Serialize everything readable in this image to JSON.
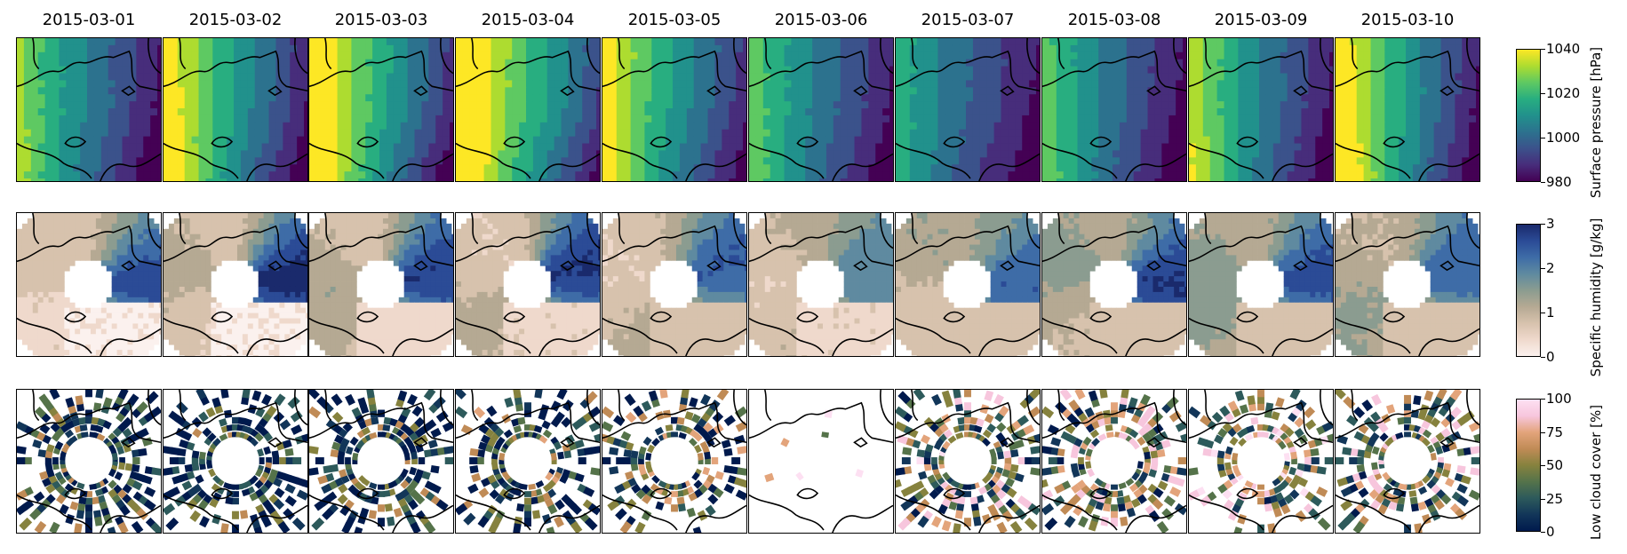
{
  "chart_data": {
    "type": "heatmap",
    "columns": [
      "2015-03-01",
      "2015-03-02",
      "2015-03-03",
      "2015-03-04",
      "2015-03-05",
      "2015-03-06",
      "2015-03-07",
      "2015-03-08",
      "2015-03-09",
      "2015-03-10"
    ],
    "rows": [
      {
        "variable": "Surface pressure",
        "colorbar_label": "Surface pressure [hPa]",
        "range": [
          980,
          1040
        ],
        "ticks": [
          "980",
          "1000",
          "1020",
          "1040"
        ],
        "colormap": [
          "#440154",
          "#472d7b",
          "#3b528b",
          "#2c728e",
          "#21918c",
          "#28ae80",
          "#5ec962",
          "#addc30",
          "#fde725"
        ],
        "field_mask": "full",
        "levels_by_day": [
          [
            0.6,
            0.42,
            0.3,
            0.05
          ],
          [
            0.75,
            0.5,
            0.35,
            0.08
          ],
          [
            0.8,
            0.6,
            0.4,
            0.1
          ],
          [
            0.82,
            0.65,
            0.45,
            0.2
          ],
          [
            0.7,
            0.55,
            0.3,
            0.1
          ],
          [
            0.55,
            0.4,
            0.25,
            0.06
          ],
          [
            0.45,
            0.35,
            0.2,
            0.04
          ],
          [
            0.55,
            0.35,
            0.2,
            0.02
          ],
          [
            0.65,
            0.4,
            0.15,
            0.02
          ],
          [
            0.8,
            0.45,
            0.2,
            0.02
          ]
        ]
      },
      {
        "variable": "Specific humidity",
        "colorbar_label": "Specific humidity [g/kg]",
        "range": [
          0,
          3
        ],
        "ticks": [
          "0",
          "1",
          "2",
          "3"
        ],
        "colormap": [
          "#fbf1ee",
          "#efd9cc",
          "#d7c2ad",
          "#b5a993",
          "#8b9c90",
          "#5f8aa0",
          "#3e6ca7",
          "#2b4b96",
          "#1a2a6c"
        ],
        "field_mask": "ring",
        "levels_by_day": [
          [
            0.25,
            0.4,
            0.85,
            0.1
          ],
          [
            0.3,
            0.45,
            0.9,
            0.1
          ],
          [
            0.35,
            0.5,
            0.8,
            0.15
          ],
          [
            0.3,
            0.45,
            0.85,
            0.2
          ],
          [
            0.3,
            0.5,
            0.8,
            0.25
          ],
          [
            0.3,
            0.45,
            0.7,
            0.2
          ],
          [
            0.35,
            0.55,
            0.8,
            0.3
          ],
          [
            0.4,
            0.55,
            0.85,
            0.3
          ],
          [
            0.45,
            0.5,
            0.75,
            0.25
          ],
          [
            0.4,
            0.45,
            0.7,
            0.3
          ]
        ]
      },
      {
        "variable": "Low cloud cover",
        "colorbar_label": "Low cloud cover [%]",
        "range": [
          0,
          100
        ],
        "ticks": [
          "0",
          "25",
          "50",
          "75",
          "100"
        ],
        "colormap": [
          "#001a4d",
          "#123659",
          "#2d5a5b",
          "#55734a",
          "#86823e",
          "#c08b56",
          "#e3a47b",
          "#f7c6dd",
          "#fde0f2"
        ],
        "field_mask": "ring-sparse",
        "coverage_by_day": [
          0.75,
          0.72,
          0.72,
          0.7,
          0.65,
          0.03,
          0.72,
          0.7,
          0.65,
          0.68
        ],
        "mean_level_by_day": [
          0.2,
          0.15,
          0.2,
          0.25,
          0.3,
          0.8,
          0.45,
          0.45,
          0.55,
          0.45
        ]
      }
    ]
  }
}
